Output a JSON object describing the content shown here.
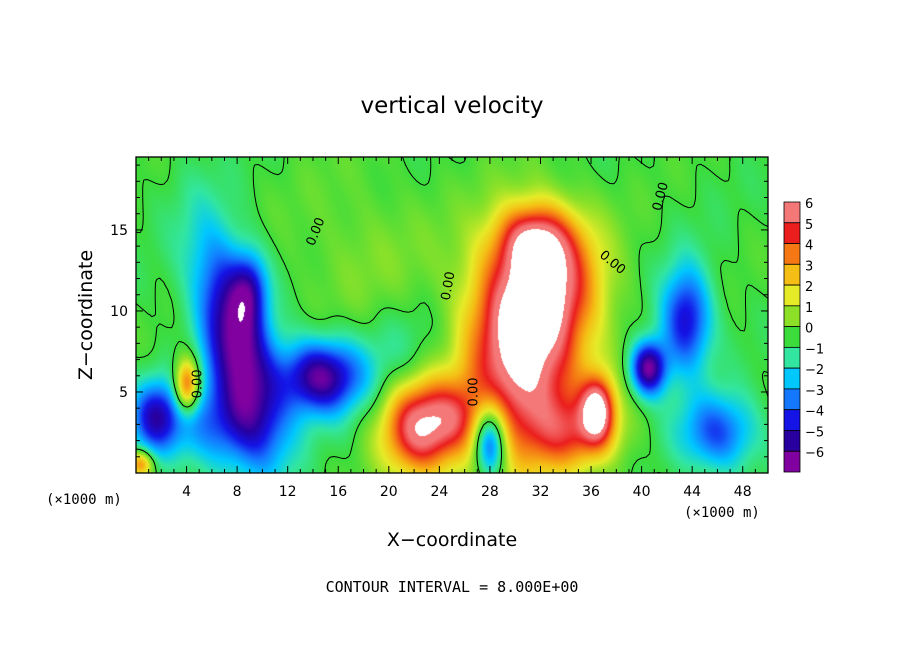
{
  "chart_data": {
    "type": "heatmap",
    "title": "vertical velocity",
    "xlabel": "X−coordinate",
    "ylabel": "Z−coordinate",
    "x_unit": "(×1000 m)",
    "y_unit": "(×1000 m)",
    "xlim": [
      0,
      50
    ],
    "ylim": [
      0,
      19.5
    ],
    "x_ticks": [
      4,
      8,
      12,
      16,
      20,
      24,
      28,
      32,
      36,
      40,
      44,
      48
    ],
    "x_tick_labels": [
      "4",
      "8",
      "12",
      "16",
      "20",
      "24",
      "28",
      "32",
      "36",
      "40",
      "44",
      "48"
    ],
    "y_ticks": [
      5,
      10,
      15
    ],
    "y_tick_labels": [
      "5",
      "10",
      "15"
    ],
    "colorbar": {
      "min": -6,
      "max": 6,
      "tick_values": [
        6,
        5,
        4,
        3,
        2,
        1,
        0,
        -1,
        -2,
        -3,
        -4,
        -5,
        -6
      ],
      "tick_labels": [
        "6",
        "5",
        "4",
        "3",
        "2",
        "1",
        "0",
        "−1",
        "−2",
        "−3",
        "−4",
        "−5",
        "−6"
      ]
    },
    "contour_label": "0.00",
    "contour_labels_positions_data": [
      {
        "x": 14.5,
        "z": 14.8,
        "angle": -68
      },
      {
        "x": 25.0,
        "z": 11.5,
        "angle": -80
      },
      {
        "x": 5.2,
        "z": 5.5,
        "angle": -90
      },
      {
        "x": 27.0,
        "z": 5.0,
        "angle": -90
      },
      {
        "x": 37.5,
        "z": 12.8,
        "angle": 40
      },
      {
        "x": 41.8,
        "z": 17.0,
        "angle": -75
      }
    ],
    "features": [
      {
        "x": 8.0,
        "z": 8.0,
        "sx": 1.8,
        "sz": 4.8,
        "value": -6.0,
        "rot": -0.33
      },
      {
        "x": 9.0,
        "z": 11.5,
        "sx": 1.0,
        "sz": 1.6,
        "value": -3.0
      },
      {
        "x": 14.5,
        "z": 6.0,
        "sx": 2.2,
        "sz": 1.6,
        "value": -5.5
      },
      {
        "x": 4.0,
        "z": 5.4,
        "sx": 0.7,
        "sz": 1.2,
        "value": 5.5
      },
      {
        "x": 1.5,
        "z": 3.5,
        "sx": 1.4,
        "sz": 1.6,
        "value": -4.0
      },
      {
        "x": 6.5,
        "z": 3.0,
        "sx": 3.0,
        "sz": 2.0,
        "value": -3.0
      },
      {
        "x": 22.5,
        "z": 3.0,
        "sx": 2.3,
        "sz": 2.2,
        "value": 7.0
      },
      {
        "x": 28.0,
        "z": 2.0,
        "sx": 0.9,
        "sz": 1.6,
        "value": -5.5
      },
      {
        "x": 30.5,
        "z": 7.0,
        "sx": 3.3,
        "sz": 4.5,
        "value": 7.0
      },
      {
        "x": 32.5,
        "z": 12.0,
        "sx": 3.0,
        "sz": 2.8,
        "value": 4.5
      },
      {
        "x": 31.5,
        "z": 14.5,
        "sx": 2.0,
        "sz": 1.5,
        "value": 3.5
      },
      {
        "x": 36.5,
        "z": 4.0,
        "sx": 0.9,
        "sz": 1.4,
        "value": 5.5
      },
      {
        "x": 35.0,
        "z": 2.5,
        "sx": 2.5,
        "sz": 1.6,
        "value": 3.0
      },
      {
        "x": 40.5,
        "z": 6.5,
        "sx": 1.0,
        "sz": 1.2,
        "value": -6.0
      },
      {
        "x": 43.5,
        "z": 9.5,
        "sx": 1.4,
        "sz": 2.3,
        "value": -4.5
      },
      {
        "x": 46.0,
        "z": 2.5,
        "sx": 2.2,
        "sz": 1.7,
        "value": -3.5
      },
      {
        "x": 21.0,
        "z": 6.0,
        "sx": 3.5,
        "sz": 3.0,
        "value": -1.5
      },
      {
        "x": 25.5,
        "z": 3.5,
        "sx": 1.5,
        "sz": 1.5,
        "value": 1.5
      },
      {
        "x": 18.0,
        "z": 13.0,
        "sx": 4.0,
        "sz": 4.0,
        "value": 0.8
      },
      {
        "x": 0.3,
        "z": 0.6,
        "sx": 0.7,
        "sz": 0.6,
        "value": 4.0
      }
    ]
  },
  "footer": {
    "contour_interval_text": "CONTOUR INTERVAL =  8.000E+00"
  }
}
